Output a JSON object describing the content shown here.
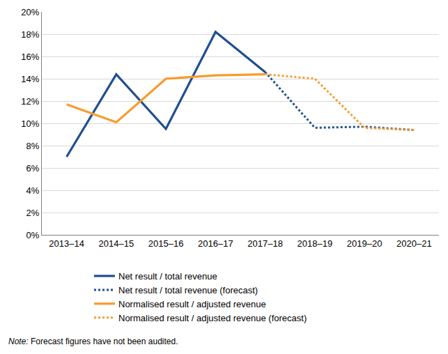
{
  "chart_data": {
    "type": "line",
    "categories": [
      "2013–14",
      "2014–15",
      "2015–16",
      "2016–17",
      "2017–18",
      "2018–19",
      "2019–20",
      "2020–21"
    ],
    "series": [
      {
        "name": "Net result / total revenue",
        "color": "#1f4e91",
        "line_style": "solid",
        "values": [
          7.0,
          14.4,
          9.5,
          18.2,
          14.6,
          null,
          null,
          null
        ]
      },
      {
        "name": "Net result / total revenue (forecast)",
        "color": "#1f4e91",
        "line_style": "dot",
        "values": [
          null,
          null,
          null,
          null,
          14.6,
          9.6,
          9.7,
          9.4
        ]
      },
      {
        "name": "Normalised result / adjusted revenue",
        "color": "#f79b2e",
        "line_style": "solid",
        "values": [
          11.7,
          10.1,
          14.0,
          14.3,
          14.4,
          null,
          null,
          null
        ]
      },
      {
        "name": "Normalised result / adjusted revenue (forecast)",
        "color": "#f79b2e",
        "line_style": "dot",
        "values": [
          null,
          null,
          null,
          null,
          14.4,
          14.0,
          9.6,
          9.4
        ]
      }
    ],
    "ylim": [
      0,
      20
    ],
    "yticks": [
      {
        "value": 0,
        "label": "0%"
      },
      {
        "value": 2,
        "label": "2%"
      },
      {
        "value": 4,
        "label": "4%"
      },
      {
        "value": 6,
        "label": "6%"
      },
      {
        "value": 8,
        "label": "8%"
      },
      {
        "value": 10,
        "label": "10%"
      },
      {
        "value": 12,
        "label": "12%"
      },
      {
        "value": 14,
        "label": "14%"
      },
      {
        "value": 16,
        "label": "16%"
      },
      {
        "value": 18,
        "label": "18%"
      },
      {
        "value": 20,
        "label": "20%"
      }
    ],
    "grid": true,
    "legend": "bottom",
    "note": "Note: Forecast figures have not been audited."
  }
}
